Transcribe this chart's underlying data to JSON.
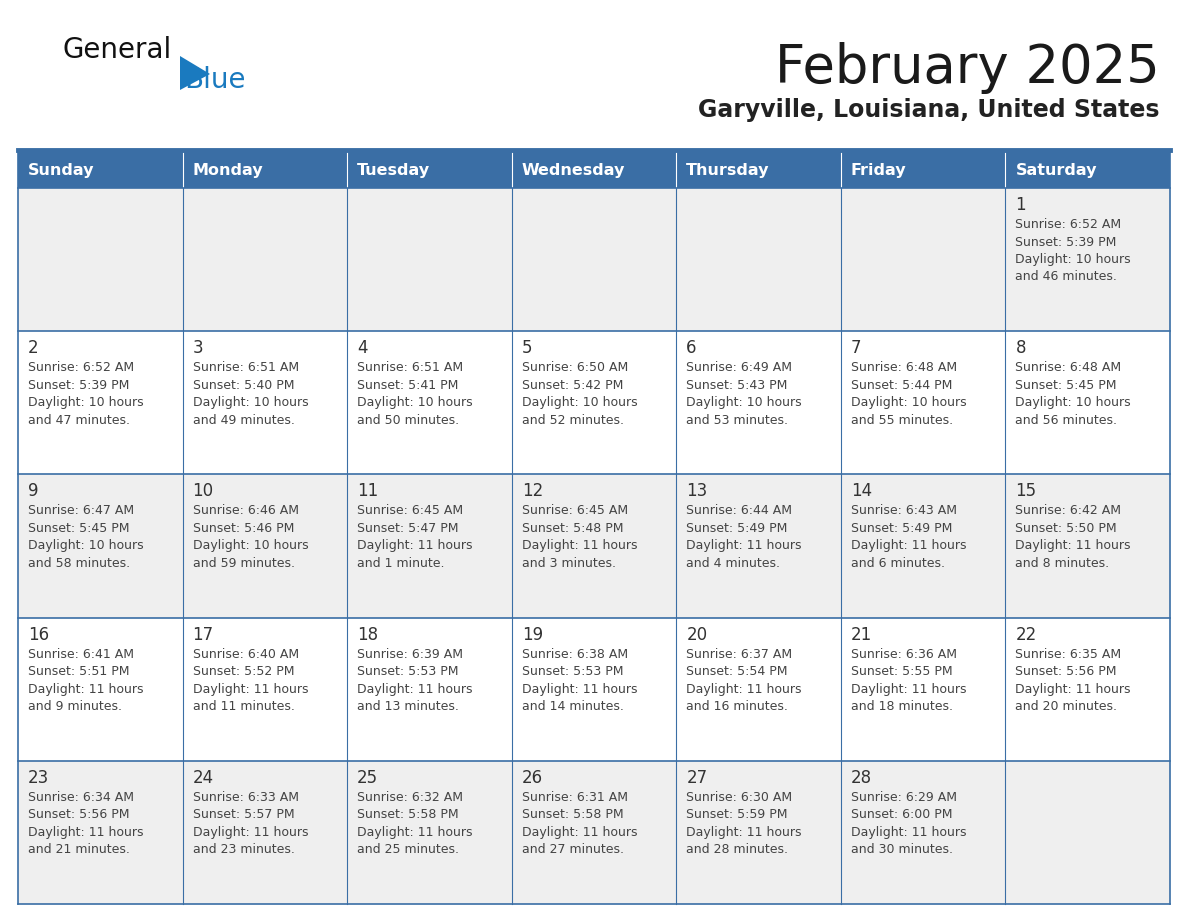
{
  "title": "February 2025",
  "subtitle": "Garyville, Louisiana, United States",
  "days_of_week": [
    "Sunday",
    "Monday",
    "Tuesday",
    "Wednesday",
    "Thursday",
    "Friday",
    "Saturday"
  ],
  "header_bg": "#3a6ea5",
  "header_text": "#ffffff",
  "cell_bg_odd": "#efefef",
  "cell_bg_even": "#ffffff",
  "cell_border": "#3a6ea5",
  "day_num_color": "#333333",
  "text_color": "#444444",
  "title_color": "#1a1a1a",
  "subtitle_color": "#222222",
  "logo_general_color": "#111111",
  "logo_blue_color": "#1a7abf",
  "logo_triangle_color": "#1a7abf",
  "calendar_data": [
    [
      null,
      null,
      null,
      null,
      null,
      null,
      {
        "day": 1,
        "sunrise": "6:52 AM",
        "sunset": "5:39 PM",
        "daylight": "10 hours and 46 minutes."
      }
    ],
    [
      {
        "day": 2,
        "sunrise": "6:52 AM",
        "sunset": "5:39 PM",
        "daylight": "10 hours and 47 minutes."
      },
      {
        "day": 3,
        "sunrise": "6:51 AM",
        "sunset": "5:40 PM",
        "daylight": "10 hours and 49 minutes."
      },
      {
        "day": 4,
        "sunrise": "6:51 AM",
        "sunset": "5:41 PM",
        "daylight": "10 hours and 50 minutes."
      },
      {
        "day": 5,
        "sunrise": "6:50 AM",
        "sunset": "5:42 PM",
        "daylight": "10 hours and 52 minutes."
      },
      {
        "day": 6,
        "sunrise": "6:49 AM",
        "sunset": "5:43 PM",
        "daylight": "10 hours and 53 minutes."
      },
      {
        "day": 7,
        "sunrise": "6:48 AM",
        "sunset": "5:44 PM",
        "daylight": "10 hours and 55 minutes."
      },
      {
        "day": 8,
        "sunrise": "6:48 AM",
        "sunset": "5:45 PM",
        "daylight": "10 hours and 56 minutes."
      }
    ],
    [
      {
        "day": 9,
        "sunrise": "6:47 AM",
        "sunset": "5:45 PM",
        "daylight": "10 hours and 58 minutes."
      },
      {
        "day": 10,
        "sunrise": "6:46 AM",
        "sunset": "5:46 PM",
        "daylight": "10 hours and 59 minutes."
      },
      {
        "day": 11,
        "sunrise": "6:45 AM",
        "sunset": "5:47 PM",
        "daylight": "11 hours and 1 minute."
      },
      {
        "day": 12,
        "sunrise": "6:45 AM",
        "sunset": "5:48 PM",
        "daylight": "11 hours and 3 minutes."
      },
      {
        "day": 13,
        "sunrise": "6:44 AM",
        "sunset": "5:49 PM",
        "daylight": "11 hours and 4 minutes."
      },
      {
        "day": 14,
        "sunrise": "6:43 AM",
        "sunset": "5:49 PM",
        "daylight": "11 hours and 6 minutes."
      },
      {
        "day": 15,
        "sunrise": "6:42 AM",
        "sunset": "5:50 PM",
        "daylight": "11 hours and 8 minutes."
      }
    ],
    [
      {
        "day": 16,
        "sunrise": "6:41 AM",
        "sunset": "5:51 PM",
        "daylight": "11 hours and 9 minutes."
      },
      {
        "day": 17,
        "sunrise": "6:40 AM",
        "sunset": "5:52 PM",
        "daylight": "11 hours and 11 minutes."
      },
      {
        "day": 18,
        "sunrise": "6:39 AM",
        "sunset": "5:53 PM",
        "daylight": "11 hours and 13 minutes."
      },
      {
        "day": 19,
        "sunrise": "6:38 AM",
        "sunset": "5:53 PM",
        "daylight": "11 hours and 14 minutes."
      },
      {
        "day": 20,
        "sunrise": "6:37 AM",
        "sunset": "5:54 PM",
        "daylight": "11 hours and 16 minutes."
      },
      {
        "day": 21,
        "sunrise": "6:36 AM",
        "sunset": "5:55 PM",
        "daylight": "11 hours and 18 minutes."
      },
      {
        "day": 22,
        "sunrise": "6:35 AM",
        "sunset": "5:56 PM",
        "daylight": "11 hours and 20 minutes."
      }
    ],
    [
      {
        "day": 23,
        "sunrise": "6:34 AM",
        "sunset": "5:56 PM",
        "daylight": "11 hours and 21 minutes."
      },
      {
        "day": 24,
        "sunrise": "6:33 AM",
        "sunset": "5:57 PM",
        "daylight": "11 hours and 23 minutes."
      },
      {
        "day": 25,
        "sunrise": "6:32 AM",
        "sunset": "5:58 PM",
        "daylight": "11 hours and 25 minutes."
      },
      {
        "day": 26,
        "sunrise": "6:31 AM",
        "sunset": "5:58 PM",
        "daylight": "11 hours and 27 minutes."
      },
      {
        "day": 27,
        "sunrise": "6:30 AM",
        "sunset": "5:59 PM",
        "daylight": "11 hours and 28 minutes."
      },
      {
        "day": 28,
        "sunrise": "6:29 AM",
        "sunset": "6:00 PM",
        "daylight": "11 hours and 30 minutes."
      },
      null
    ]
  ]
}
